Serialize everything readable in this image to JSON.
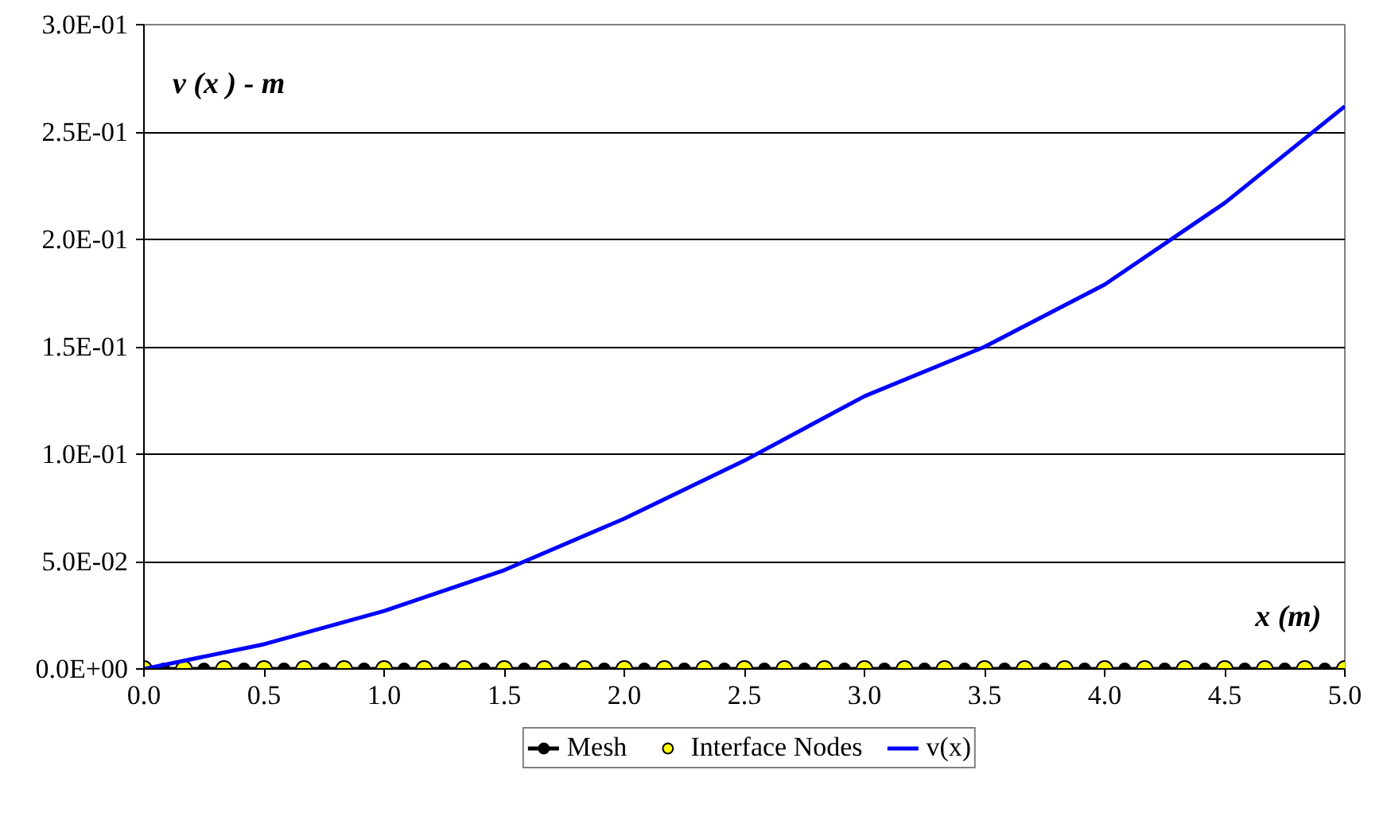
{
  "chart_data": {
    "type": "line",
    "xlabel": "x  (m)",
    "ylabel": "v (x ) - m",
    "xlim": [
      0,
      5
    ],
    "ylim": [
      0,
      0.3
    ],
    "xticks": [
      {
        "value": 0,
        "label": "0.0"
      },
      {
        "value": 0.5,
        "label": "0.5"
      },
      {
        "value": 1,
        "label": "1.0"
      },
      {
        "value": 1.5,
        "label": "1.5"
      },
      {
        "value": 2,
        "label": "2.0"
      },
      {
        "value": 2.5,
        "label": "2.5"
      },
      {
        "value": 3,
        "label": "3.0"
      },
      {
        "value": 3.5,
        "label": "3.5"
      },
      {
        "value": 4,
        "label": "4.0"
      },
      {
        "value": 4.5,
        "label": "4.5"
      },
      {
        "value": 5,
        "label": "5.0"
      }
    ],
    "yticks": [
      {
        "value": 0,
        "label": "0.0E+00"
      },
      {
        "value": 0.05,
        "label": "5.0E-02"
      },
      {
        "value": 0.1,
        "label": "1.0E-01"
      },
      {
        "value": 0.15,
        "label": "1.5E-01"
      },
      {
        "value": 0.2,
        "label": "2.0E-01"
      },
      {
        "value": 0.25,
        "label": "2.5E-01"
      },
      {
        "value": 0.3,
        "label": "3.0E-01"
      }
    ],
    "grid": "y",
    "legend": "bottom",
    "series": [
      {
        "name": "Mesh",
        "marker": "circle",
        "color": "#000000",
        "x": [
          0,
          0.0833,
          0.1667,
          0.25,
          0.3333,
          0.4167,
          0.5,
          0.5833,
          0.6667,
          0.75,
          0.8333,
          0.9167,
          1,
          1.0833,
          1.1667,
          1.25,
          1.3333,
          1.4167,
          1.5,
          1.5833,
          1.6667,
          1.75,
          1.8333,
          1.9167,
          2,
          2.0833,
          2.1667,
          2.25,
          2.3333,
          2.4167,
          2.5,
          2.5833,
          2.6667,
          2.75,
          2.8333,
          2.9167,
          3,
          3.0833,
          3.1667,
          3.25,
          3.3333,
          3.4167,
          3.5,
          3.5833,
          3.6667,
          3.75,
          3.8333,
          3.9167,
          4,
          4.0833,
          4.1667,
          4.25,
          4.3333,
          4.4167,
          4.5,
          4.5833,
          4.6667,
          4.75,
          4.8333,
          4.9167,
          5
        ],
        "values": [
          0,
          0,
          0,
          0,
          0,
          0,
          0,
          0,
          0,
          0,
          0,
          0,
          0,
          0,
          0,
          0,
          0,
          0,
          0,
          0,
          0,
          0,
          0,
          0,
          0,
          0,
          0,
          0,
          0,
          0,
          0,
          0,
          0,
          0,
          0,
          0,
          0,
          0,
          0,
          0,
          0,
          0,
          0,
          0,
          0,
          0,
          0,
          0,
          0,
          0,
          0,
          0,
          0,
          0,
          0,
          0,
          0,
          0,
          0,
          0,
          0
        ]
      },
      {
        "name": "Interface Nodes",
        "type": "scatter",
        "marker": "circle",
        "color": "#ffff00",
        "x": [
          0,
          0.1667,
          0.3333,
          0.5,
          0.6667,
          0.8333,
          1,
          1.1667,
          1.3333,
          1.5,
          1.6667,
          1.8333,
          2,
          2.1667,
          2.3333,
          2.5,
          2.6667,
          2.8333,
          3,
          3.1667,
          3.3333,
          3.5,
          3.6667,
          3.8333,
          4,
          4.1667,
          4.3333,
          4.5,
          4.6667,
          4.8333,
          5
        ],
        "values": [
          0,
          0,
          0,
          0,
          0,
          0,
          0,
          0,
          0,
          0,
          0,
          0,
          0,
          0,
          0,
          0,
          0,
          0,
          0,
          0,
          0,
          0,
          0,
          0,
          0,
          0,
          0,
          0,
          0,
          0,
          0
        ]
      },
      {
        "name": "v(x)",
        "marker": "none",
        "color": "#0000ff",
        "x": [
          0,
          0.5,
          1,
          1.5,
          2,
          2.5,
          3,
          3.5,
          4,
          4.5,
          5
        ],
        "values": [
          0,
          0.0115,
          0.027,
          0.046,
          0.07,
          0.097,
          0.127,
          0.15,
          0.179,
          0.217,
          0.262
        ]
      }
    ]
  }
}
